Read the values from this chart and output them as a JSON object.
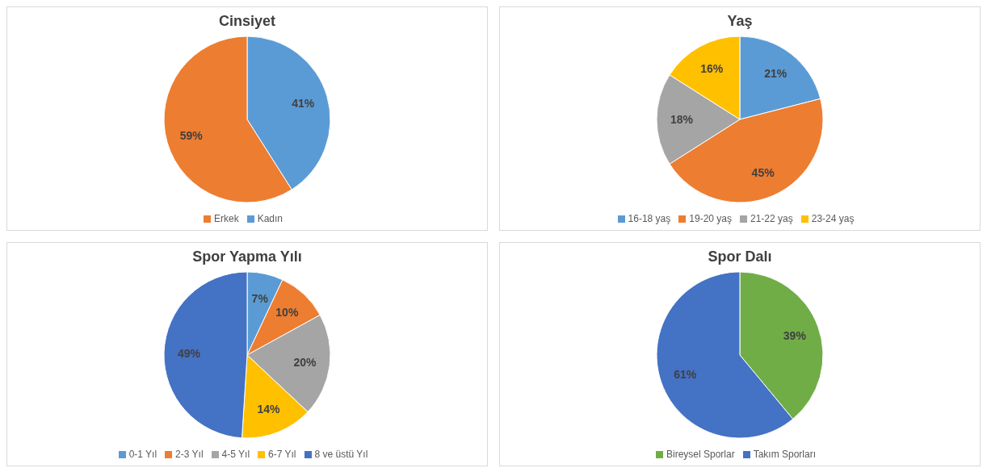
{
  "chart_data": [
    {
      "type": "pie",
      "title": "Cinsiyet",
      "categories": [
        "Kadın",
        "Erkek"
      ],
      "values": [
        41,
        59
      ],
      "colors": [
        "#5b9bd5",
        "#ed7d31"
      ],
      "value_labels": [
        "41%",
        "59%"
      ],
      "legend": "bottom"
    },
    {
      "type": "pie",
      "title": "Yaş",
      "categories": [
        "16-18 yaş",
        "19-20 yaş",
        "21-22 yaş",
        "23-24 yaş"
      ],
      "values": [
        21,
        45,
        18,
        16
      ],
      "colors": [
        "#5b9bd5",
        "#ed7d31",
        "#a5a5a5",
        "#ffc000"
      ],
      "value_labels": [
        "21%",
        "45%",
        "18%",
        "16%"
      ],
      "legend": "bottom"
    },
    {
      "type": "pie",
      "title": "Spor Yapma Yılı",
      "categories": [
        "0-1 Yıl",
        "2-3 Yıl",
        "4-5 Yıl",
        "6-7 Yıl",
        "8 ve üstü Yıl"
      ],
      "values": [
        7,
        10,
        20,
        14,
        49
      ],
      "colors": [
        "#5b9bd5",
        "#ed7d31",
        "#a5a5a5",
        "#ffc000",
        "#4472c4"
      ],
      "value_labels": [
        "7%",
        "10%",
        "20%",
        "14%",
        "49%"
      ],
      "legend": "bottom"
    },
    {
      "type": "pie",
      "title": "Spor Dalı",
      "categories": [
        "Bireysel Sporlar",
        "Takım Sporları"
      ],
      "values": [
        39,
        61
      ],
      "colors": [
        "#70ad47",
        "#4472c4"
      ],
      "value_labels": [
        "39%",
        "61%"
      ],
      "legend": "bottom"
    }
  ]
}
